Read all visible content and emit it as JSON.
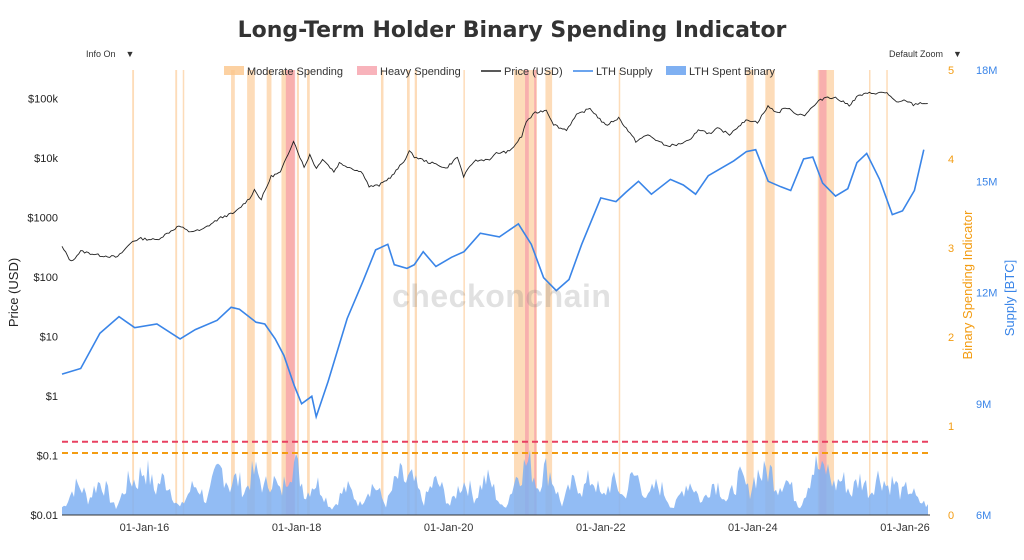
{
  "header": {
    "title": "Long-Term Holder Binary Spending Indicator",
    "info_label": "Info On",
    "zoom_label": "Default Zoom",
    "dropdown_arrow": "▼",
    "watermark": "checkonchain"
  },
  "colors": {
    "moderate": "#fbc58b",
    "heavy": "#f6a0aa",
    "price": "#222222",
    "supply": "#3a85e8",
    "spent": "#7fb0f2",
    "orange_axis": "#f39c12",
    "blue_axis": "#3a85e8",
    "red_threshold": "#e84060",
    "orange_threshold": "#f39c12"
  },
  "chart_data": {
    "type": "line",
    "title": "Long-Term Holder Binary Spending Indicator",
    "legend": [
      {
        "name": "Moderate Spending",
        "kind": "band",
        "color": "#fbc58b"
      },
      {
        "name": "Heavy Spending",
        "kind": "band",
        "color": "#f6a0aa"
      },
      {
        "name": "Price (USD)",
        "kind": "line",
        "color": "#222222"
      },
      {
        "name": "LTH Supply",
        "kind": "line",
        "color": "#3a85e8"
      },
      {
        "name": "LTH Spent Binary",
        "kind": "area",
        "color": "#7fb0f2"
      }
    ],
    "legend_position": "top-center",
    "x_axis": {
      "range": [
        "2014-12-01",
        "2026-05-01"
      ],
      "ticks": [
        {
          "date": "2016-01-01",
          "label": "01-Jan-16"
        },
        {
          "date": "2018-01-01",
          "label": "01-Jan-18"
        },
        {
          "date": "2020-01-01",
          "label": "01-Jan-20"
        },
        {
          "date": "2022-01-01",
          "label": "01-Jan-22"
        },
        {
          "date": "2024-01-01",
          "label": "01-Jan-24"
        },
        {
          "date": "2026-01-01",
          "label": "01-Jan-26"
        }
      ]
    },
    "y_price": {
      "label": "Price (USD)",
      "scale": "log",
      "range": [
        0.01,
        300000
      ],
      "ticks": [
        {
          "value": 0.01,
          "label": "$0.01"
        },
        {
          "value": 0.1,
          "label": "$0.1"
        },
        {
          "value": 1,
          "label": "$1"
        },
        {
          "value": 10,
          "label": "$10"
        },
        {
          "value": 100,
          "label": "$100"
        },
        {
          "value": 1000,
          "label": "$1000"
        },
        {
          "value": 10000,
          "label": "$10k"
        },
        {
          "value": 100000,
          "label": "$100k"
        }
      ],
      "thresholds": [
        {
          "value": 0.17,
          "style": "dashed-red"
        },
        {
          "value": 0.11,
          "style": "dashed-orange"
        }
      ]
    },
    "y_indicator": {
      "label": "Binary Spending Indicator",
      "range": [
        0,
        5
      ],
      "ticks": [
        0,
        1,
        2,
        3,
        4,
        5
      ]
    },
    "y_supply": {
      "label": "Supply [BTC]",
      "range": [
        6000000,
        18000000
      ],
      "ticks": [
        {
          "value": 6000000,
          "label": "6M"
        },
        {
          "value": 9000000,
          "label": "9M"
        },
        {
          "value": 12000000,
          "label": "12M"
        },
        {
          "value": 15000000,
          "label": "15M"
        },
        {
          "value": 18000000,
          "label": "18M"
        }
      ]
    },
    "price_series": {
      "name": "Price (USD)",
      "points": [
        [
          "2014-12-01",
          320
        ],
        [
          "2015-01-14",
          180
        ],
        [
          "2015-03-01",
          270
        ],
        [
          "2015-06-01",
          230
        ],
        [
          "2015-08-25",
          215
        ],
        [
          "2015-11-05",
          400
        ],
        [
          "2015-12-15",
          440
        ],
        [
          "2016-03-01",
          420
        ],
        [
          "2016-06-15",
          720
        ],
        [
          "2016-08-01",
          580
        ],
        [
          "2016-10-01",
          610
        ],
        [
          "2017-01-01",
          990
        ],
        [
          "2017-03-10",
          1200
        ],
        [
          "2017-05-20",
          2100
        ],
        [
          "2017-06-12",
          2900
        ],
        [
          "2017-07-15",
          2000
        ],
        [
          "2017-09-01",
          4900
        ],
        [
          "2017-10-15",
          5700
        ],
        [
          "2017-12-17",
          19500
        ],
        [
          "2018-02-06",
          6900
        ],
        [
          "2018-03-05",
          11400
        ],
        [
          "2018-04-06",
          6600
        ],
        [
          "2018-05-05",
          9700
        ],
        [
          "2018-06-29",
          5900
        ],
        [
          "2018-07-25",
          8200
        ],
        [
          "2018-11-15",
          5600
        ],
        [
          "2018-12-15",
          3300
        ],
        [
          "2019-02-01",
          3450
        ],
        [
          "2019-04-05",
          5000
        ],
        [
          "2019-05-30",
          8700
        ],
        [
          "2019-06-26",
          12800
        ],
        [
          "2019-07-20",
          10500
        ],
        [
          "2019-09-25",
          8500
        ],
        [
          "2019-11-20",
          7500
        ],
        [
          "2019-12-18",
          6600
        ],
        [
          "2020-02-12",
          10300
        ],
        [
          "2020-03-13",
          4900
        ],
        [
          "2020-05-01",
          8800
        ],
        [
          "2020-07-25",
          9700
        ],
        [
          "2020-08-17",
          12000
        ],
        [
          "2020-10-20",
          12800
        ],
        [
          "2020-12-17",
          23000
        ],
        [
          "2021-01-08",
          41000
        ],
        [
          "2021-02-20",
          57000
        ],
        [
          "2021-04-14",
          64000
        ],
        [
          "2021-05-19",
          37000
        ],
        [
          "2021-06-22",
          31500
        ],
        [
          "2021-07-20",
          29800
        ],
        [
          "2021-09-06",
          52000
        ],
        [
          "2021-11-10",
          68000
        ],
        [
          "2022-01-24",
          35000
        ],
        [
          "2022-03-28",
          47000
        ],
        [
          "2022-06-18",
          19000
        ],
        [
          "2022-08-15",
          24400
        ],
        [
          "2022-11-09",
          16000
        ],
        [
          "2022-12-30",
          16500
        ],
        [
          "2023-03-10",
          20000
        ],
        [
          "2023-04-14",
          30500
        ],
        [
          "2023-06-15",
          25000
        ],
        [
          "2023-07-14",
          31400
        ],
        [
          "2023-09-11",
          25000
        ],
        [
          "2023-10-25",
          34500
        ],
        [
          "2023-12-08",
          44000
        ],
        [
          "2024-01-23",
          39500
        ],
        [
          "2024-03-14",
          73000
        ],
        [
          "2024-05-01",
          57000
        ],
        [
          "2024-06-05",
          71000
        ],
        [
          "2024-08-05",
          54000
        ],
        [
          "2024-09-06",
          53000
        ],
        [
          "2024-11-12",
          89000
        ],
        [
          "2024-12-17",
          106000
        ],
        [
          "2025-02-01",
          102000
        ],
        [
          "2025-04-08",
          77000
        ],
        [
          "2025-05-22",
          111000
        ],
        [
          "2025-07-14",
          122000
        ],
        [
          "2025-08-14",
          123000
        ],
        [
          "2025-10-06",
          125000
        ],
        [
          "2025-11-21",
          84000
        ],
        [
          "2026-01-05",
          93000
        ],
        [
          "2026-02-10",
          78000
        ],
        [
          "2026-03-15",
          84000
        ],
        [
          "2026-04-20",
          82000
        ]
      ]
    },
    "lth_supply_series": {
      "name": "LTH Supply",
      "points": [
        [
          "2014-12-01",
          9800000.0
        ],
        [
          "2015-03-01",
          9950000.0
        ],
        [
          "2015-06-01",
          10900000.0
        ],
        [
          "2015-09-01",
          11350000.0
        ],
        [
          "2015-11-15",
          11050000.0
        ],
        [
          "2016-03-01",
          11150000.0
        ],
        [
          "2016-06-20",
          10750000.0
        ],
        [
          "2016-09-01",
          11000000.0
        ],
        [
          "2016-12-15",
          11250000.0
        ],
        [
          "2017-02-20",
          11600000.0
        ],
        [
          "2017-04-01",
          11550000.0
        ],
        [
          "2017-06-20",
          11200000.0
        ],
        [
          "2017-08-01",
          11150000.0
        ],
        [
          "2017-09-20",
          10750000.0
        ],
        [
          "2017-11-01",
          10300000.0
        ],
        [
          "2017-12-20",
          9500000.0
        ],
        [
          "2018-01-25",
          9000000.0
        ],
        [
          "2018-03-15",
          9200000.0
        ],
        [
          "2018-04-05",
          8650000.0
        ],
        [
          "2018-06-01",
          9600000.0
        ],
        [
          "2018-09-01",
          11300000.0
        ],
        [
          "2018-11-15",
          12300000.0
        ],
        [
          "2019-01-15",
          13150000.0
        ],
        [
          "2019-03-15",
          13300000.0
        ],
        [
          "2019-04-15",
          12750000.0
        ],
        [
          "2019-06-15",
          12650000.0
        ],
        [
          "2019-07-20",
          12750000.0
        ],
        [
          "2019-09-01",
          13100000.0
        ],
        [
          "2019-11-01",
          12700000.0
        ],
        [
          "2020-01-15",
          12950000.0
        ],
        [
          "2020-03-15",
          13100000.0
        ],
        [
          "2020-06-01",
          13600000.0
        ],
        [
          "2020-09-01",
          13500000.0
        ],
        [
          "2020-12-01",
          13850000.0
        ],
        [
          "2021-02-01",
          13300000.0
        ],
        [
          "2021-04-01",
          12400000.0
        ],
        [
          "2021-06-01",
          12050000.0
        ],
        [
          "2021-08-01",
          12350000.0
        ],
        [
          "2021-10-01",
          13300000.0
        ],
        [
          "2022-01-01",
          14550000.0
        ],
        [
          "2022-03-15",
          14450000.0
        ],
        [
          "2022-05-01",
          14700000.0
        ],
        [
          "2022-07-01",
          15000000.0
        ],
        [
          "2022-09-01",
          14650000.0
        ],
        [
          "2022-12-01",
          15050000.0
        ],
        [
          "2023-02-01",
          14900000.0
        ],
        [
          "2023-04-01",
          14650000.0
        ],
        [
          "2023-06-01",
          15150000.0
        ],
        [
          "2023-08-01",
          15350000.0
        ],
        [
          "2023-10-01",
          15550000.0
        ],
        [
          "2023-12-01",
          15800000.0
        ],
        [
          "2024-01-15",
          15850000.0
        ],
        [
          "2024-03-15",
          15000000.0
        ],
        [
          "2024-05-15",
          14850000.0
        ],
        [
          "2024-07-01",
          14750000.0
        ],
        [
          "2024-09-01",
          15600000.0
        ],
        [
          "2024-10-15",
          15650000.0
        ],
        [
          "2024-12-01",
          14950000.0
        ],
        [
          "2025-02-01",
          14600000.0
        ],
        [
          "2025-04-01",
          14800000.0
        ],
        [
          "2025-05-15",
          15500000.0
        ],
        [
          "2025-07-01",
          15750000.0
        ],
        [
          "2025-09-01",
          15050000.0
        ],
        [
          "2025-11-01",
          14100000.0
        ],
        [
          "2025-12-20",
          14200000.0
        ],
        [
          "2026-02-15",
          14750000.0
        ],
        [
          "2026-04-01",
          15850000.0
        ]
      ]
    },
    "lth_spent_binary_series": {
      "name": "LTH Spent Binary",
      "peaks": [
        [
          "2015-02-15",
          0.45
        ],
        [
          "2015-06-01",
          0.5
        ],
        [
          "2015-11-01",
          0.55
        ],
        [
          "2016-01-01",
          0.7
        ],
        [
          "2016-04-01",
          0.55
        ],
        [
          "2016-09-01",
          0.45
        ],
        [
          "2017-01-01",
          0.7
        ],
        [
          "2017-03-15",
          0.55
        ],
        [
          "2017-06-15",
          0.65
        ],
        [
          "2017-09-01",
          0.55
        ],
        [
          "2017-12-15",
          0.8
        ],
        [
          "2018-04-01",
          0.5
        ],
        [
          "2018-09-01",
          0.4
        ],
        [
          "2019-01-01",
          0.45
        ],
        [
          "2019-05-15",
          0.6
        ],
        [
          "2019-07-01",
          0.55
        ],
        [
          "2019-11-01",
          0.5
        ],
        [
          "2020-03-15",
          0.5
        ],
        [
          "2020-07-01",
          0.55
        ],
        [
          "2020-12-15",
          0.7
        ],
        [
          "2021-01-15",
          0.8
        ],
        [
          "2021-04-15",
          0.7
        ],
        [
          "2021-09-01",
          0.5
        ],
        [
          "2021-11-15",
          0.55
        ],
        [
          "2022-03-01",
          0.5
        ],
        [
          "2022-06-15",
          0.6
        ],
        [
          "2022-10-01",
          0.45
        ],
        [
          "2023-03-01",
          0.5
        ],
        [
          "2023-07-01",
          0.5
        ],
        [
          "2023-11-01",
          0.55
        ],
        [
          "2024-02-01",
          0.65
        ],
        [
          "2024-03-15",
          0.7
        ],
        [
          "2024-06-01",
          0.55
        ],
        [
          "2024-11-01",
          0.75
        ],
        [
          "2024-12-15",
          0.7
        ],
        [
          "2025-03-01",
          0.55
        ],
        [
          "2025-06-01",
          0.55
        ],
        [
          "2025-09-01",
          0.6
        ],
        [
          "2025-11-01",
          0.5
        ],
        [
          "2026-01-15",
          0.4
        ],
        [
          "2026-03-15",
          0.2
        ]
      ]
    },
    "moderate_spending_periods": [
      [
        "2015-11-03",
        "2015-11-12"
      ],
      [
        "2016-05-28",
        "2016-06-06"
      ],
      [
        "2016-07-03",
        "2016-07-09"
      ],
      [
        "2017-02-20",
        "2017-03-10"
      ],
      [
        "2017-05-08",
        "2017-06-14"
      ],
      [
        "2017-08-10",
        "2017-09-02"
      ],
      [
        "2017-10-20",
        "2017-12-20"
      ],
      [
        "2018-01-02",
        "2018-01-12"
      ],
      [
        "2018-02-20",
        "2018-03-05"
      ],
      [
        "2019-02-10",
        "2019-02-22"
      ],
      [
        "2019-06-15",
        "2019-06-28"
      ],
      [
        "2019-07-22",
        "2019-08-02"
      ],
      [
        "2020-03-12",
        "2020-03-18"
      ],
      [
        "2020-11-10",
        "2021-02-28"
      ],
      [
        "2021-04-10",
        "2021-05-12"
      ],
      [
        "2022-03-28",
        "2022-04-04"
      ],
      [
        "2023-12-01",
        "2024-01-05"
      ],
      [
        "2024-03-01",
        "2024-04-15"
      ],
      [
        "2024-11-08",
        "2025-01-25"
      ],
      [
        "2025-07-12",
        "2025-07-18"
      ],
      [
        "2025-10-03",
        "2025-10-10"
      ]
    ],
    "heavy_spending_periods": [
      [
        "2017-11-10",
        "2017-12-25"
      ],
      [
        "2021-01-02",
        "2021-01-20"
      ],
      [
        "2021-02-15",
        "2021-02-25"
      ],
      [
        "2024-11-15",
        "2024-12-20"
      ]
    ]
  }
}
